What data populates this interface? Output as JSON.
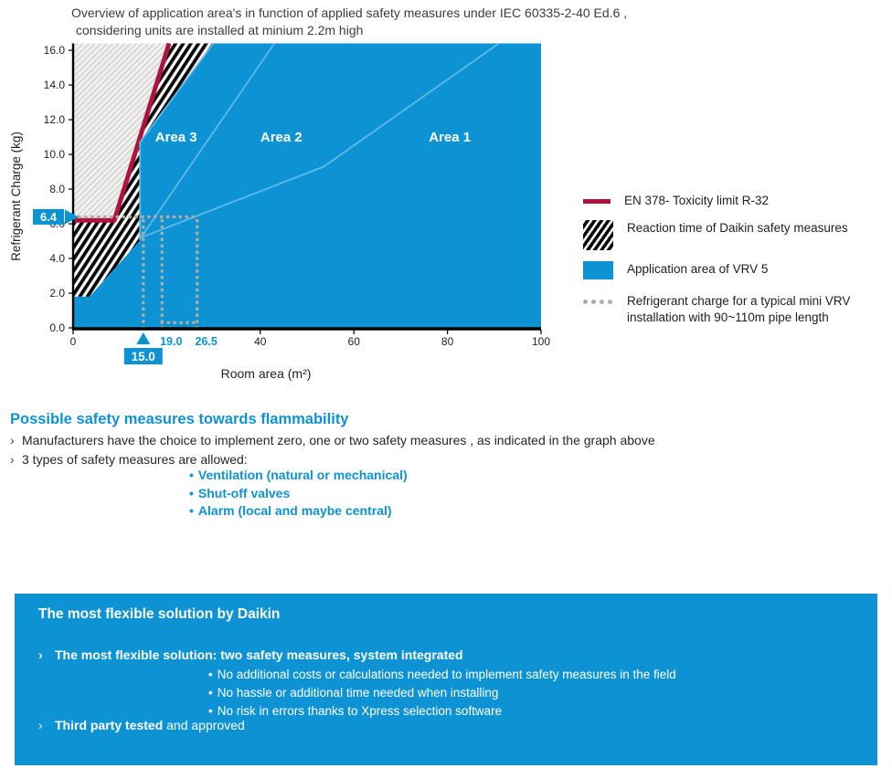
{
  "title": {
    "line1": "Overview of application area's in function of applied safety measures under IEC 60335-2-40 Ed.6 ,",
    "line2": "considering units are installed at minium 2.2m high"
  },
  "colors": {
    "daikin_blue": "#0d93d4",
    "light_blue_line": "#5fb9e8",
    "toxicity_red": "#b01240",
    "dot_gray": "#b3aba0",
    "hatch_light_bg": "#f0f0ee",
    "hatch_light_line": "#cfcfcd",
    "axis_black": "#000000",
    "text_dark": "#222222"
  },
  "chart_data": {
    "type": "area",
    "title": "",
    "xlabel": "Room area (m²)",
    "ylabel": "Refrigerant Charge (kg)",
    "xlim": [
      0,
      100
    ],
    "ylim": [
      0,
      16.4
    ],
    "x_ticks": [
      0,
      40,
      60,
      80,
      100
    ],
    "y_ticks": [
      0,
      2,
      4,
      6,
      8,
      10,
      12,
      14,
      16
    ],
    "grid": false,
    "legend_position": "right",
    "series": {
      "vrv5_application_boundary": [
        [
          0,
          1.8
        ],
        [
          3.5,
          1.8
        ],
        [
          14.3,
          5.05
        ],
        [
          14.3,
          10.7
        ],
        [
          30,
          16.4
        ]
      ],
      "toxicity_limit_line": [
        [
          0,
          6.2
        ],
        [
          8.8,
          6.2
        ],
        [
          20.5,
          16.4
        ]
      ],
      "vrv5_edge_highlight": [
        [
          14.3,
          5.05
        ],
        [
          14.3,
          10.7
        ],
        [
          30,
          16.4
        ]
      ],
      "area_separator_3_2": [
        [
          14.5,
          5.2
        ],
        [
          43,
          16.4
        ]
      ],
      "area_separator_2_1": [
        [
          14.5,
          5.2
        ],
        [
          53.6,
          9.3
        ],
        [
          91,
          16.4
        ]
      ]
    },
    "dotted_reference": {
      "h_line": [
        [
          0,
          6.4
        ],
        [
          26.5,
          6.4
        ]
      ],
      "v_lines": [
        [
          15,
          0,
          6.4
        ],
        [
          19,
          0,
          6.4
        ],
        [
          26.5,
          0,
          6.4
        ]
      ],
      "bottom_segment": [
        [
          19,
          0.3
        ],
        [
          26.5,
          0.3
        ]
      ]
    },
    "markers": {
      "y_callout": {
        "value": 6.4,
        "label": "6.4"
      },
      "x_callout": {
        "value": 15,
        "label": "15.0"
      },
      "x_labels": [
        {
          "value": 19,
          "label": "19.0"
        },
        {
          "value": 26.5,
          "label": "26.5"
        }
      ]
    },
    "area_labels": [
      {
        "text": "Area 3",
        "x": 22,
        "y": 10.75
      },
      {
        "text": "Area 2",
        "x": 44.5,
        "y": 10.75
      },
      {
        "text": "Area 1",
        "x": 80.5,
        "y": 10.75
      }
    ]
  },
  "legend": {
    "items": [
      {
        "swatch": "line",
        "label": "EN 378- Toxicity limit R-32"
      },
      {
        "swatch": "hatch",
        "label": "Reaction time of Daikin safety measures"
      },
      {
        "swatch": "fill",
        "label": "Application area of VRV 5"
      },
      {
        "swatch": "dotted",
        "label": "Refrigerant charge for a typical mini VRV installation with 90~110m pipe length"
      }
    ]
  },
  "safety_section": {
    "heading": "Possible safety measures towards flammability",
    "bullet_char": "›",
    "sub_bullet_char": "•",
    "bullets": [
      "Manufacturers have the choice to implement zero, one or two safety measures , as indicated in the graph above",
      "3 types of safety measures are allowed:"
    ],
    "sub_bullets": [
      "Ventilation (natural or mechanical)",
      "Shut-off valves",
      "Alarm (local and maybe central)"
    ]
  },
  "daikin_box": {
    "heading": "The most flexible solution by Daikin",
    "bullet_char": "›",
    "sub_bullet_char": "•",
    "bullet1_bold": "The most flexible solution: two safety measures, system integrated",
    "sub_bullets": [
      "No additional costs or calculations needed to implement safety measures in the field",
      "No hassle or additional time needed when installing",
      "No risk in errors thanks to Xpress selection software"
    ],
    "bullet2_bold": "Third party tested",
    "bullet2_rest": " and approved"
  }
}
